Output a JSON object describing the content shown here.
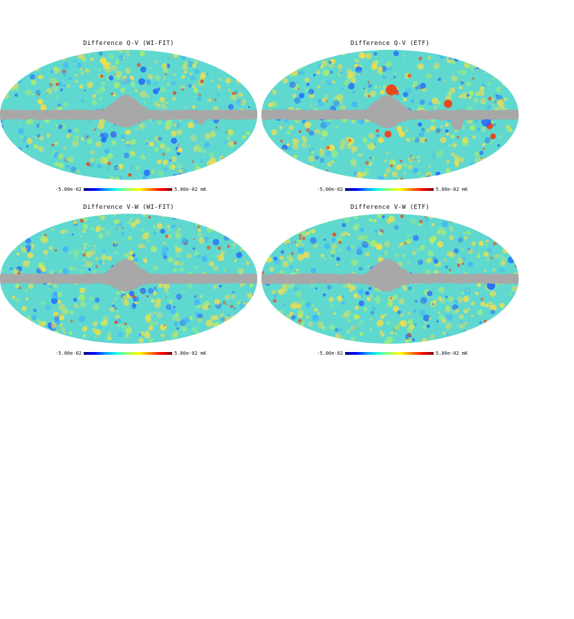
{
  "panels": [
    {
      "title": "Difference Q-V (WI-FIT)",
      "colorbar_min": "-5.00e-02",
      "colorbar_max": "5.00e-02 mK"
    },
    {
      "title": "Difference Q-V (ETF)",
      "colorbar_min": "-5.00e-02",
      "colorbar_max": "5.00e-02 mK"
    },
    {
      "title": "Difference V-W (WI-FIT)",
      "colorbar_min": "-5.00e-02",
      "colorbar_max": "5.00e-02 mK"
    },
    {
      "title": "Difference V-W (ETF)",
      "colorbar_min": "-5.00e-02",
      "colorbar_max": "5.00e-02 mK"
    }
  ],
  "colors": {
    "map_base": "#5fd8d0",
    "mask": "#a8a8a8",
    "cold": "#1f5fff",
    "warm": "#ffe040",
    "hot": "#ff3000"
  }
}
